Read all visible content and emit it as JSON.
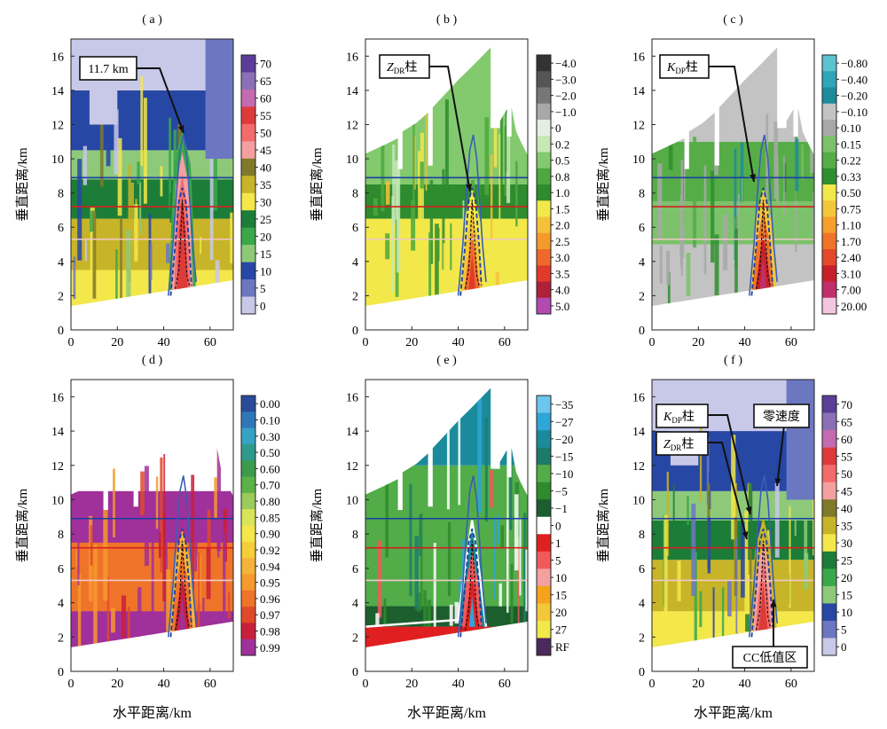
{
  "figure": {
    "panels": [
      {
        "id": "a",
        "label": "( a )",
        "field": "reflectivity",
        "ylabel": "垂直距离/km",
        "xlabel": "",
        "xticks": [
          0,
          20,
          40,
          60
        ],
        "yticks": [
          0,
          2,
          4,
          6,
          8,
          10,
          12,
          14,
          16
        ],
        "colorbar": {
          "labels": [
            "70",
            "65",
            "60",
            "55",
            "50",
            "45",
            "40",
            "35",
            "30",
            "25",
            "20",
            "15",
            "10",
            "5",
            "0"
          ],
          "colors": [
            "#5a3e97",
            "#8c70b6",
            "#c36bb0",
            "#de3a3a",
            "#f46b6b",
            "#f4a0a0",
            "#7f7a2b",
            "#c8b428",
            "#f3e74a",
            "#1c7d39",
            "#3aa84a",
            "#8ec97a",
            "#2747a5",
            "#6c77c2",
            "#c8c8e8"
          ]
        },
        "annotations": [
          "11.7 km"
        ]
      },
      {
        "id": "b",
        "label": "( b )",
        "field": "zdr",
        "ylabel": "垂直距离/km",
        "xlabel": "",
        "xticks": [
          0,
          20,
          40,
          60
        ],
        "yticks": [
          0,
          2,
          4,
          6,
          8,
          10,
          12,
          14,
          16
        ],
        "colorbar": {
          "labels": [
            "−4.0",
            "−3.0",
            "−2.0",
            "−1.0",
            "0",
            "0.2",
            "0.5",
            "0.8",
            "1.0",
            "1.5",
            "2.0",
            "2.5",
            "3.0",
            "3.5",
            "4.0",
            "5.0"
          ],
          "colors": [
            "#333333",
            "#555555",
            "#777777",
            "#a8a8a8",
            "#e3efe3",
            "#c6e8b5",
            "#83c96e",
            "#4ea83d",
            "#2e8b2e",
            "#f2e84a",
            "#f4c23a",
            "#f59a2c",
            "#ef6a2a",
            "#e03a2a",
            "#b0203a",
            "#b34ab0"
          ]
        },
        "annotations": [
          "Z",
          "DR",
          "柱"
        ]
      },
      {
        "id": "c",
        "label": "( c )",
        "field": "kdp",
        "ylabel": "垂直距离/km",
        "xlabel": "",
        "xticks": [
          0,
          20,
          40,
          60
        ],
        "yticks": [
          0,
          2,
          4,
          6,
          8,
          10,
          12,
          14,
          16
        ],
        "colorbar": {
          "labels": [
            "−0.80",
            "−0.40",
            "−0.20",
            "−0.10",
            "0.10",
            "0.15",
            "0.22",
            "0.33",
            "0.50",
            "0.75",
            "1.10",
            "1.70",
            "2.40",
            "3.10",
            "7.00",
            "20.00"
          ],
          "colors": [
            "#5cc3d0",
            "#2ea6b8",
            "#1c8c9c",
            "#c3c3c3",
            "#a8a8a8",
            "#7cc26a",
            "#56ad48",
            "#2f8f2f",
            "#f2e84a",
            "#f4c63a",
            "#f59f2c",
            "#ef742a",
            "#e44a2a",
            "#c8202a",
            "#c02f6a",
            "#f3c6e0"
          ]
        },
        "annotations": [
          "K",
          "DP",
          "柱"
        ]
      },
      {
        "id": "d",
        "label": "( d )",
        "field": "cc",
        "ylabel": "垂直距离/km",
        "xlabel": "水平距离/km",
        "xticks": [
          0,
          20,
          40,
          60
        ],
        "yticks": [
          0,
          2,
          4,
          6,
          8,
          10,
          12,
          14,
          16
        ],
        "colorbar": {
          "labels": [
            "0.00",
            "0.10",
            "0.30",
            "0.50",
            "0.60",
            "0.70",
            "0.80",
            "0.85",
            "0.90",
            "0.92",
            "0.94",
            "0.95",
            "0.96",
            "0.97",
            "0.98",
            "0.99"
          ],
          "colors": [
            "#2a4a9a",
            "#2f76b8",
            "#36a3c3",
            "#2f9a8c",
            "#3c9b4a",
            "#5cb148",
            "#9acb5a",
            "#d8e45a",
            "#f3e74a",
            "#f4cf3a",
            "#f4b43a",
            "#f59a2c",
            "#ef742a",
            "#e04a2a",
            "#c8203a",
            "#a0309a"
          ]
        },
        "annotations": []
      },
      {
        "id": "e",
        "label": "( e )",
        "field": "velocity",
        "ylabel": "垂直距离/km",
        "xlabel": "水平距离/km",
        "xticks": [
          0,
          20,
          40,
          60
        ],
        "yticks": [
          0,
          2,
          4,
          6,
          8,
          10,
          12,
          14,
          16
        ],
        "colorbar": {
          "labels": [
            "−35",
            "−27",
            "−20",
            "−15",
            "−10",
            "−5",
            "−1",
            "0",
            "1",
            "5",
            "10",
            "15",
            "20",
            "27",
            "RF"
          ],
          "colors": [
            "#6dc6ee",
            "#2ea6d6",
            "#1b8a9a",
            "#1c7c6a",
            "#52ad48",
            "#2e8b2e",
            "#1c5e2e",
            "#ffffff",
            "#e02020",
            "#f05a5a",
            "#f4a0a0",
            "#f5a31c",
            "#f4c63a",
            "#f2e84a",
            "#4a2a5a"
          ]
        },
        "annotations": []
      },
      {
        "id": "f",
        "label": "( f )",
        "field": "reflectivity",
        "ylabel": "垂直距离/km",
        "xlabel": "水平距离/km",
        "xticks": [
          0,
          20,
          40,
          60
        ],
        "yticks": [
          0,
          2,
          4,
          6,
          8,
          10,
          12,
          14,
          16
        ],
        "colorbar": {
          "labels": [
            "70",
            "65",
            "60",
            "55",
            "50",
            "45",
            "40",
            "35",
            "30",
            "25",
            "20",
            "15",
            "10",
            "5",
            "0"
          ],
          "colors": [
            "#5a3e97",
            "#8c70b6",
            "#c36bb0",
            "#de3a3a",
            "#f46b6b",
            "#f4a0a0",
            "#7f7a2b",
            "#c8b428",
            "#f3e74a",
            "#1c7d39",
            "#3aa84a",
            "#8ec97a",
            "#2747a5",
            "#6c77c2",
            "#c8c8e8"
          ]
        },
        "annotations": [
          "K",
          "DP",
          "柱",
          "Z",
          "DR",
          "柱",
          "零速度",
          "CC低值区"
        ]
      }
    ]
  },
  "chart_data": {
    "type": "heatmap",
    "panels": [
      "(a)",
      "(b)",
      "(c)",
      "(d)",
      "(e)",
      "(f)"
    ],
    "xlabel": "水平距离/km",
    "ylabel": "垂直距离/km",
    "xlim": [
      0,
      70
    ],
    "ylim": [
      0,
      17
    ],
    "reference_lines_y_km": [
      8.9,
      7.2,
      5.3
    ],
    "reference_line_colors": [
      "#1a3ea0",
      "#d42020",
      "#f0c8c8"
    ],
    "echo_top_km": 11.7
  }
}
